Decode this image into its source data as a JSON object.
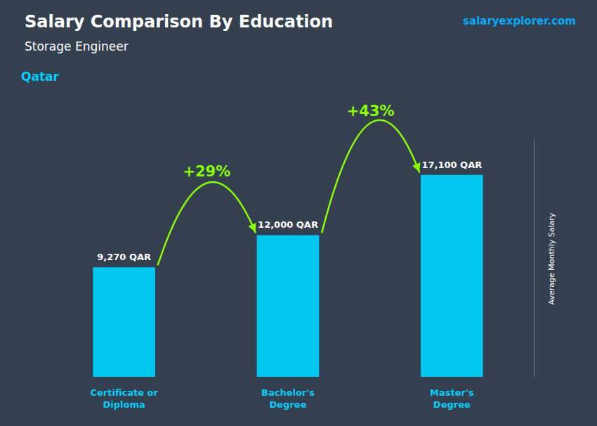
{
  "chart_data": {
    "type": "bar",
    "title": "Salary Comparison By Education",
    "subtitle": "Storage Engineer",
    "country": "Qatar",
    "source": "salaryexplorer.com",
    "ylabel": "Average Monthly Salary",
    "categories": [
      "Certificate or\nDiploma",
      "Bachelor's\nDegree",
      "Master's\nDegree"
    ],
    "values": [
      9270,
      12000,
      17100
    ],
    "value_labels": [
      "9,270 QAR",
      "12,000 QAR",
      "17,100 QAR"
    ],
    "data_labels": true,
    "color": "#00c8f0",
    "annotations": [
      {
        "text": "+29%",
        "color": "#88ff00"
      },
      {
        "text": "+43%",
        "color": "#88ff00"
      }
    ],
    "ylim": [
      0,
      20000
    ],
    "tick_labels": false,
    "grid": false
  }
}
